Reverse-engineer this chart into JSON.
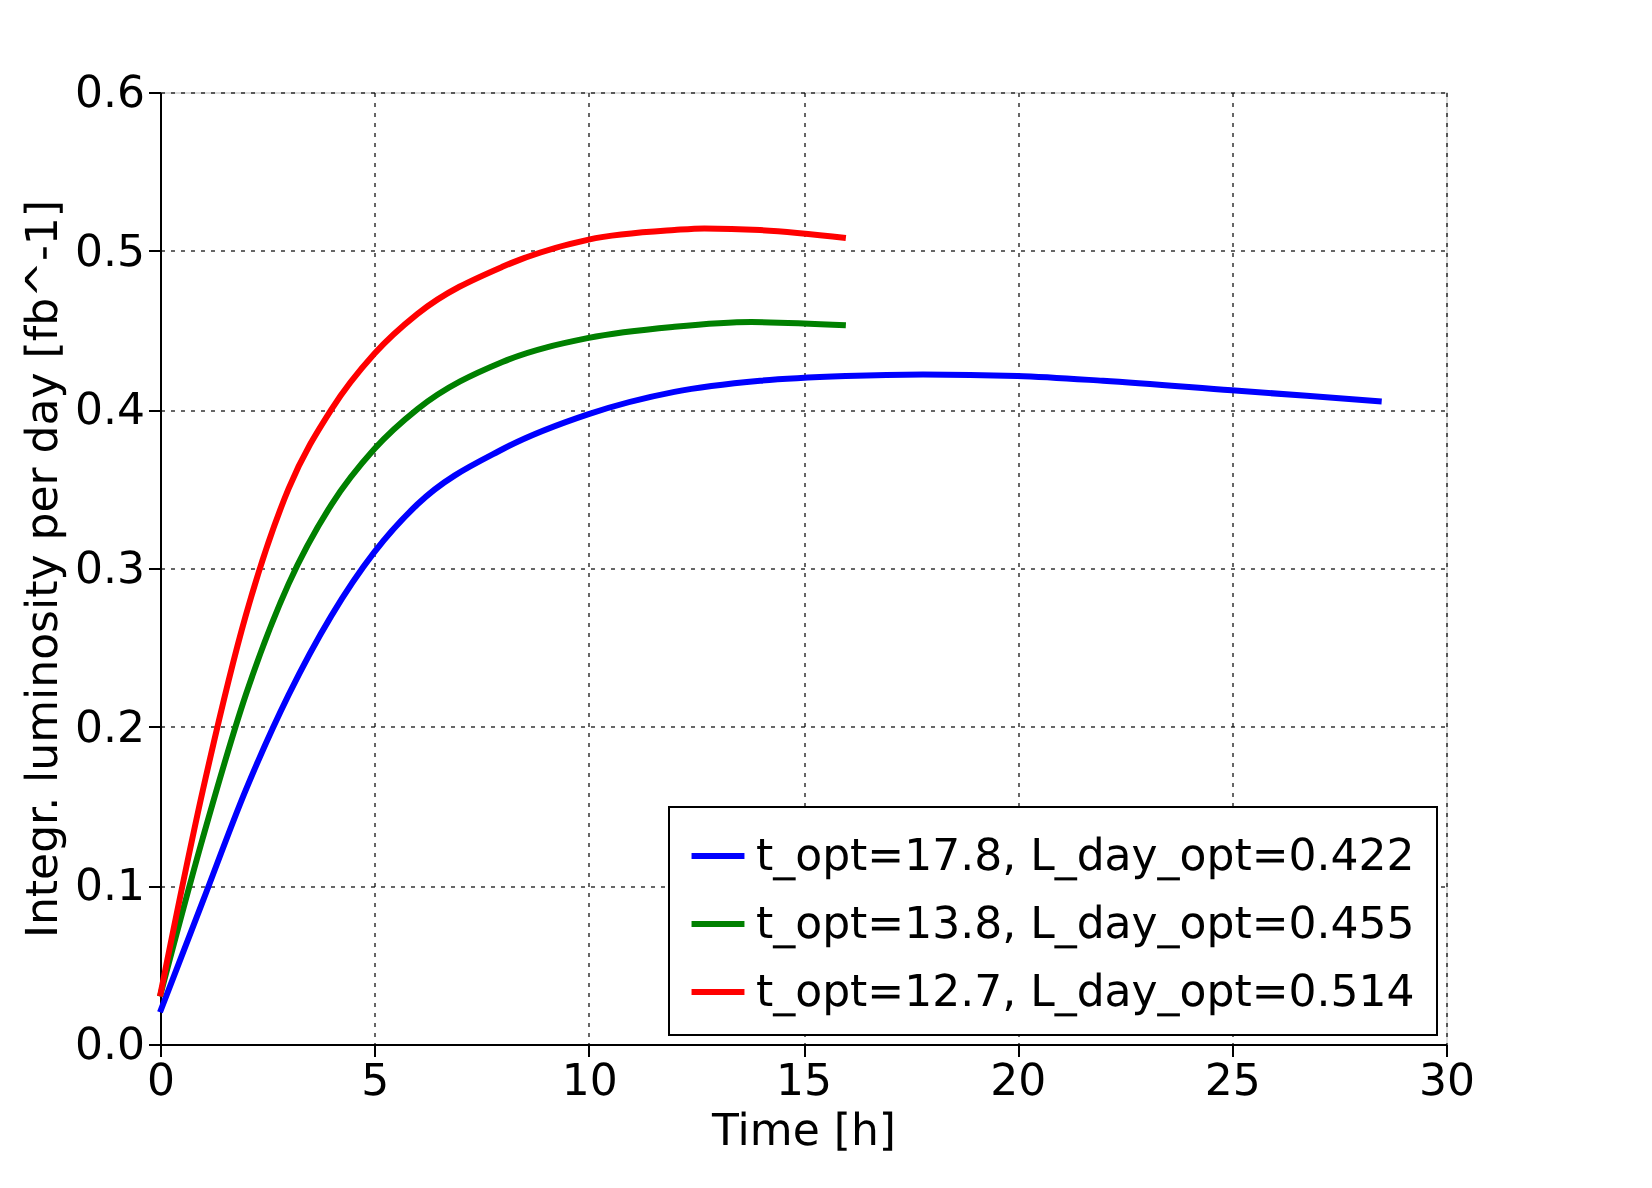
{
  "chart_data": {
    "type": "line",
    "xlabel": "Time [h]",
    "ylabel": "Integr. luminosity per day [fb^-1]",
    "xlim": [
      0,
      30
    ],
    "ylim": [
      0,
      0.6
    ],
    "xticks": [
      0,
      5,
      10,
      15,
      20,
      25,
      30
    ],
    "yticks": [
      {
        "value": 0,
        "label": "0.0"
      },
      {
        "value": 0.1,
        "label": "0.1"
      },
      {
        "value": 0.2,
        "label": "0.2"
      },
      {
        "value": 0.3,
        "label": "0.3"
      },
      {
        "value": 0.4,
        "label": "0.4"
      },
      {
        "value": 0.5,
        "label": "0.5"
      },
      {
        "value": 0.6,
        "label": "0.6"
      }
    ],
    "grid": true,
    "legend": "bottom right",
    "line_style": "solid",
    "series": [
      {
        "name": "t_opt=17.8, L_day_opt=0.422",
        "color": "#0000ff",
        "x": [
          0,
          1,
          2,
          3,
          4,
          5,
          6,
          8,
          10,
          12,
          14,
          16,
          17.8,
          20,
          22,
          25,
          28.5
        ],
        "values": [
          0.02,
          0.09,
          0.16,
          0.22,
          0.27,
          0.31,
          0.34,
          0.375,
          0.397,
          0.411,
          0.418,
          0.421,
          0.422,
          0.421,
          0.418,
          0.412,
          0.405
        ]
      },
      {
        "name": "t_opt=13.8, L_day_opt=0.455",
        "color": "#008000",
        "x": [
          0,
          1,
          2,
          3,
          4,
          5,
          6,
          8,
          10,
          12,
          13.8,
          16
        ],
        "values": [
          0.03,
          0.13,
          0.22,
          0.29,
          0.34,
          0.375,
          0.4,
          0.43,
          0.445,
          0.452,
          0.455,
          0.453
        ]
      },
      {
        "name": "t_opt=12.7, L_day_opt=0.514",
        "color": "#ff0000",
        "x": [
          0,
          1,
          2,
          3,
          4,
          5,
          6,
          8,
          10,
          12,
          12.7,
          14,
          16
        ],
        "values": [
          0.03,
          0.16,
          0.27,
          0.35,
          0.4,
          0.435,
          0.46,
          0.49,
          0.507,
          0.513,
          0.514,
          0.513,
          0.508
        ]
      }
    ]
  }
}
